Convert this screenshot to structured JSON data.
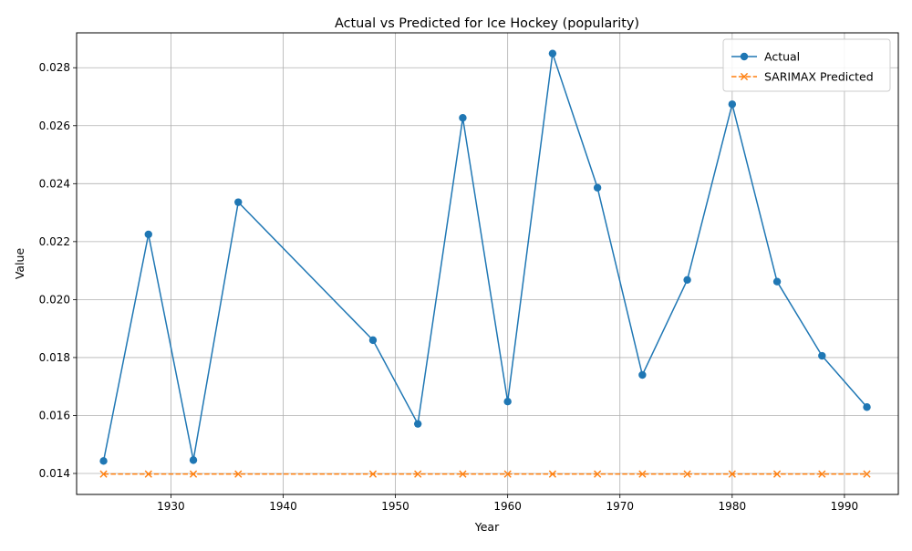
{
  "chart_data": {
    "type": "line",
    "title": "Actual vs Predicted for Ice Hockey (popularity)",
    "xlabel": "Year",
    "ylabel": "Value",
    "xlim": [
      1921.6,
      1994.8
    ],
    "ylim": [
      0.013276,
      0.029204
    ],
    "xticks": [
      1930,
      1940,
      1950,
      1960,
      1970,
      1980,
      1990
    ],
    "yticks": [
      0.014,
      0.016,
      0.018,
      0.02,
      0.022,
      0.024,
      0.026,
      0.028
    ],
    "ytick_labels": [
      "0.014",
      "0.016",
      "0.018",
      "0.020",
      "0.022",
      "0.024",
      "0.026",
      "0.028"
    ],
    "grid": true,
    "legend_position": "top-right",
    "x": [
      1924,
      1928,
      1932,
      1936,
      1948,
      1952,
      1956,
      1960,
      1964,
      1968,
      1972,
      1976,
      1980,
      1984,
      1988,
      1992
    ],
    "series": [
      {
        "name": "Actual",
        "color": "#1f77b4",
        "marker": "circle",
        "linestyle": "solid",
        "values": [
          0.01443,
          0.02225,
          0.01446,
          0.02336,
          0.0186,
          0.01571,
          0.02627,
          0.01648,
          0.02849,
          0.02386,
          0.0174,
          0.02068,
          0.02674,
          0.02062,
          0.01806,
          0.01629
        ]
      },
      {
        "name": "SARIMAX Predicted",
        "color": "#ff7f0e",
        "marker": "x",
        "linestyle": "dashed",
        "values": [
          0.01398,
          0.01398,
          0.01398,
          0.01398,
          0.01398,
          0.01398,
          0.01398,
          0.01398,
          0.01398,
          0.01398,
          0.01398,
          0.01398,
          0.01398,
          0.01398,
          0.01398,
          0.01398
        ]
      }
    ]
  }
}
